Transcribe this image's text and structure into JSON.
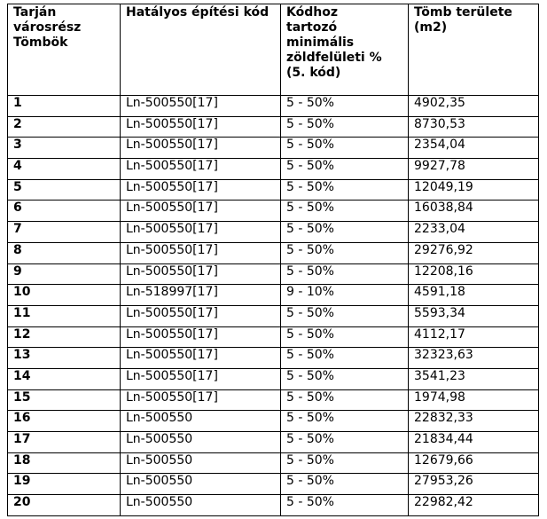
{
  "table": {
    "header": [
      "Tarján városrész Tömbök",
      "Hatályos építési kód",
      "Kódhoz tartozó minimális zöldfelületi % (5. kód)",
      "Tömb területe (m2)"
    ],
    "rows": [
      [
        "1",
        "Ln-500550[17]",
        "5 - 50%",
        "4902,35"
      ],
      [
        "2",
        "Ln-500550[17]",
        "5 - 50%",
        "8730,53"
      ],
      [
        "3",
        "Ln-500550[17]",
        "5 - 50%",
        "2354,04"
      ],
      [
        "4",
        "Ln-500550[17]",
        "5 - 50%",
        "9927,78"
      ],
      [
        "5",
        "Ln-500550[17]",
        "5 - 50%",
        "12049,19"
      ],
      [
        "6",
        "Ln-500550[17]",
        "5 - 50%",
        "16038,84"
      ],
      [
        "7",
        "Ln-500550[17]",
        "5 - 50%",
        "2233,04"
      ],
      [
        "8",
        "Ln-500550[17]",
        "5 - 50%",
        "29276,92"
      ],
      [
        "9",
        "Ln-500550[17]",
        "5 - 50%",
        "12208,16"
      ],
      [
        "10",
        "Ln-518997[17]",
        "9 - 10%",
        "4591,18"
      ],
      [
        "11",
        "Ln-500550[17]",
        "5 - 50%",
        "5593,34"
      ],
      [
        "12",
        "Ln-500550[17]",
        "5 - 50%",
        "4112,17"
      ],
      [
        "13",
        "Ln-500550[17]",
        "5 - 50%",
        "32323,63"
      ],
      [
        "14",
        "Ln-500550[17]",
        "5 - 50%",
        "3541,23"
      ],
      [
        "15",
        "Ln-500550[17]",
        "5 - 50%",
        "1974,98"
      ],
      [
        "16",
        "Ln-500550",
        "5 - 50%",
        "22832,33"
      ],
      [
        "17",
        "Ln-500550",
        "5 - 50%",
        "21834,44"
      ],
      [
        "18",
        "Ln-500550",
        "5 - 50%",
        "12679,66"
      ],
      [
        "19",
        "Ln-500550",
        "5 - 50%",
        "27953,26"
      ],
      [
        "20",
        "Ln-500550",
        "5 - 50%",
        "22982,42"
      ]
    ]
  }
}
